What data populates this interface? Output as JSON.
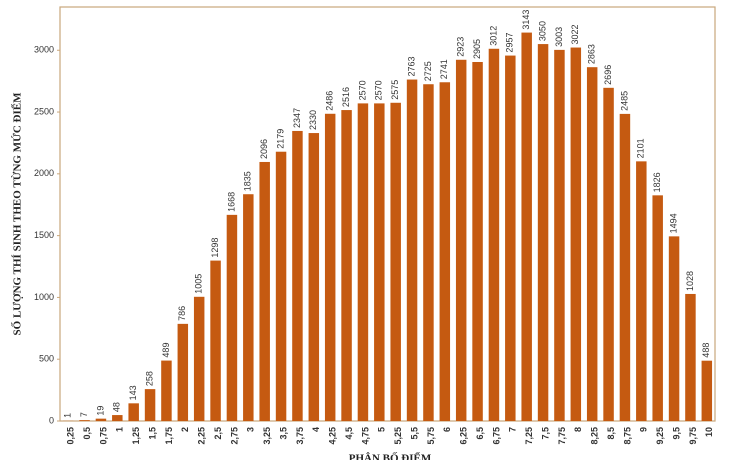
{
  "chart_data": {
    "type": "bar",
    "xlabel": "PHÂN BỐ ĐIỂM",
    "ylabel": "SỐ LƯỢNG THÍ SINH THEO TỪNG MỨC ĐIỂM",
    "categories": [
      "0,25",
      "0,5",
      "0,75",
      "1",
      "1,25",
      "1,5",
      "1,75",
      "2",
      "2,25",
      "2,5",
      "2,75",
      "3",
      "3,25",
      "3,5",
      "3,75",
      "4",
      "4,25",
      "4,5",
      "4,75",
      "5",
      "5,25",
      "5,5",
      "5,75",
      "6",
      "6,25",
      "6,5",
      "6,75",
      "7",
      "7,25",
      "7,5",
      "7,75",
      "8",
      "8,25",
      "8,5",
      "8,75",
      "9",
      "9,25",
      "9,5",
      "9,75",
      "10"
    ],
    "values": [
      1,
      7,
      19,
      48,
      143,
      258,
      489,
      786,
      1005,
      1298,
      1668,
      1835,
      2096,
      2179,
      2347,
      2330,
      2486,
      2516,
      2570,
      2570,
      2575,
      2763,
      2725,
      2741,
      2923,
      2905,
      3012,
      2957,
      3143,
      3050,
      3003,
      3022,
      2863,
      2696,
      2485,
      2101,
      1826,
      1494,
      1028,
      488
    ],
    "color": "#c55a11",
    "ylim": [
      0,
      3350
    ],
    "yticks": [
      0,
      500,
      1000,
      1500,
      2000,
      2500,
      3000
    ],
    "grid": false
  }
}
